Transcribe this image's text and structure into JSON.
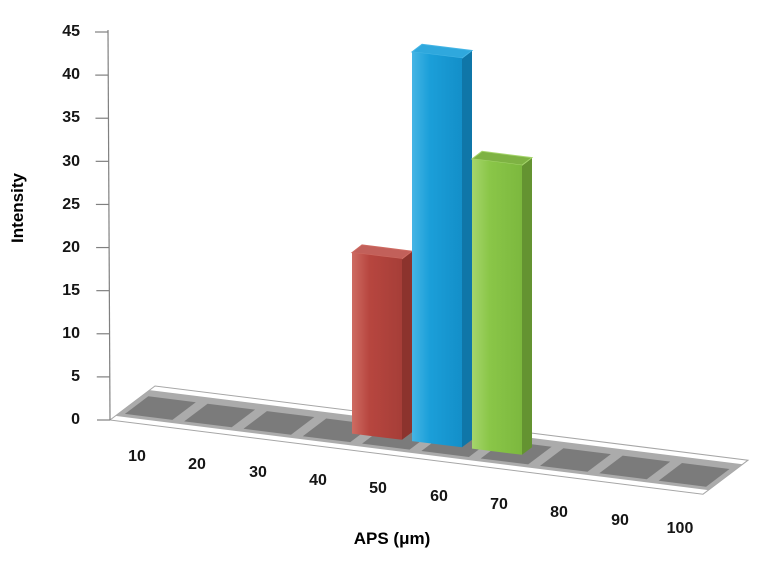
{
  "background": "#FFFFFF",
  "text_color": "#151515",
  "chart_data": {
    "type": "bar",
    "style": "3d-column",
    "title": "",
    "xlabel": "APS (μm)",
    "ylabel": "Intensity",
    "categories": [
      10,
      20,
      30,
      40,
      50,
      60,
      70,
      80,
      90,
      100
    ],
    "values": [
      0,
      0,
      0,
      0,
      20,
      43,
      32,
      0,
      0,
      0
    ],
    "y_ticks": [
      0,
      5,
      10,
      15,
      20,
      25,
      30,
      35,
      40,
      45
    ],
    "ylim": [
      0,
      45
    ],
    "grid": false,
    "legend": false,
    "axis_color": "#808080",
    "bars": [
      {
        "category": 50,
        "value": 20,
        "color_light": "#CE6B62",
        "color_front": "#B7463F",
        "color_front_dark": "#A63E38",
        "color_side": "#8C332D",
        "color_top": "#C2605A"
      },
      {
        "category": 60,
        "value": 43,
        "color_light": "#45B5E5",
        "color_front": "#1B9FD9",
        "color_front_dark": "#138FC9",
        "color_side": "#0F76A8",
        "color_top": "#2FA8DD"
      },
      {
        "category": 70,
        "value": 32,
        "color_light": "#A5D56C",
        "color_front": "#8AC648",
        "color_front_dark": "#7CB83E",
        "color_side": "#649331",
        "color_top": "#7EB243"
      }
    ],
    "floor": {
      "band_color": "#ABABAB",
      "tile_color": "#7B7B7B",
      "outline_color": "#A6A6A6"
    }
  }
}
